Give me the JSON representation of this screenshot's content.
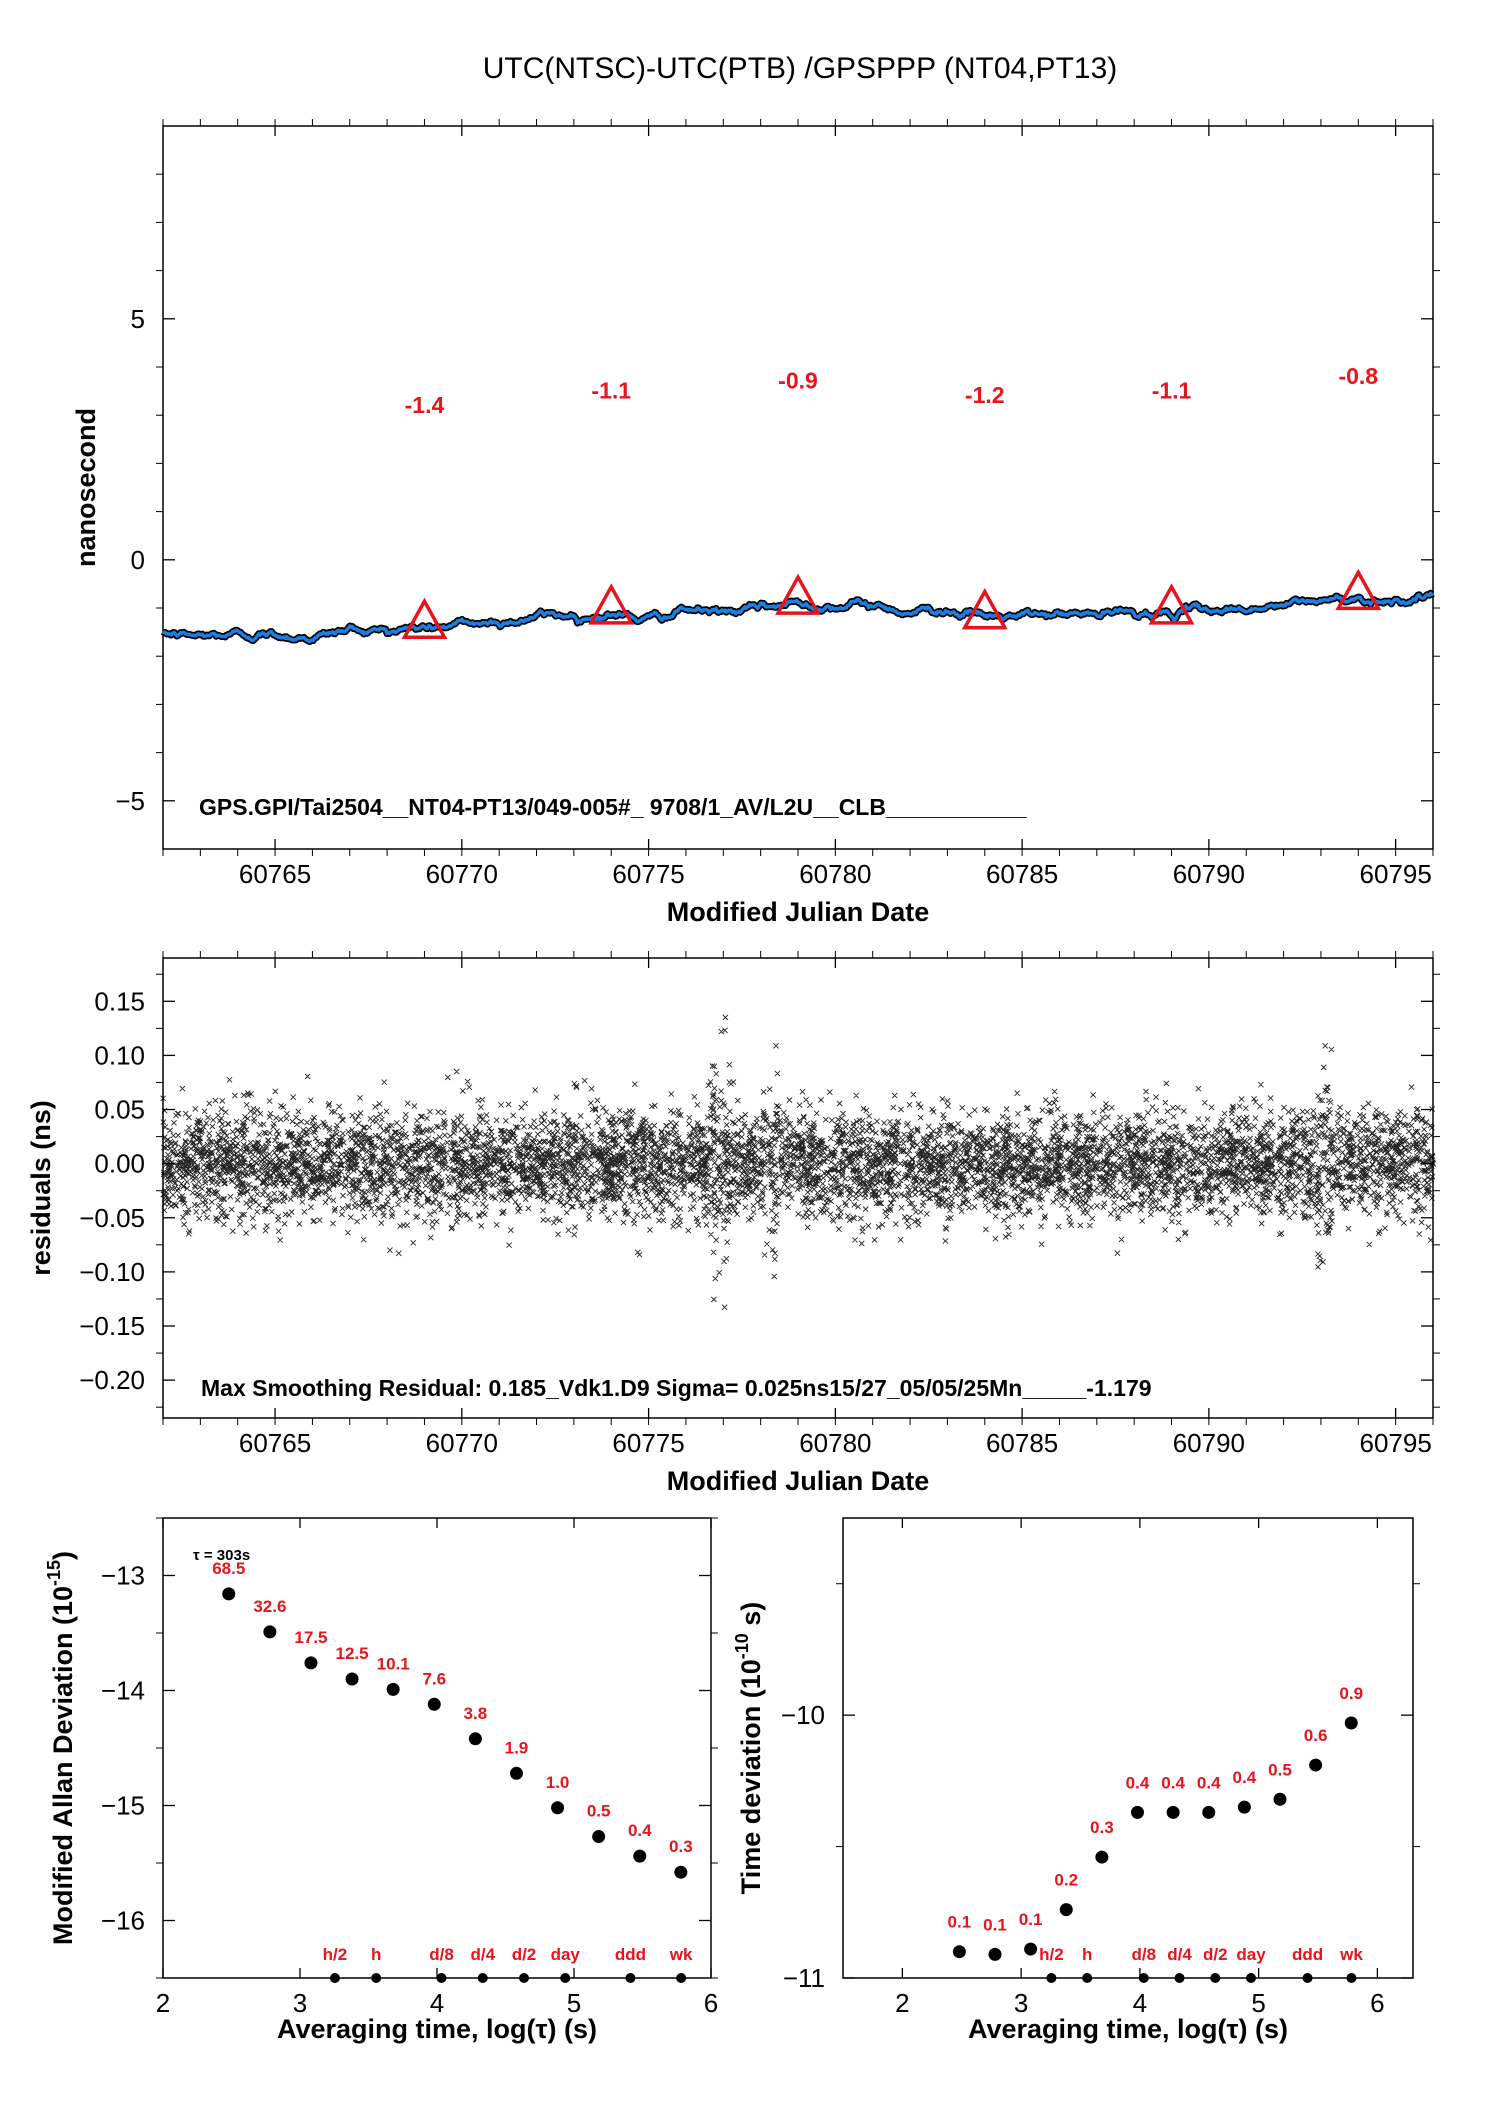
{
  "title": "UTC(NTSC)-UTC(PTB)  /GPSPPP  (NT04,PT13)",
  "colors": {
    "series_black": "#000000",
    "series_blue": "#1a7fe0",
    "marker_red": "#e8141c"
  },
  "chart_data": [
    {
      "name": "time-difference-panel",
      "type": "line",
      "ylabel": "nanosecond",
      "xlabel": "Modified Julian Date",
      "xlim": [
        60762,
        60796
      ],
      "ylim": [
        -6,
        9
      ],
      "xticks": [
        60765,
        60770,
        60775,
        60780,
        60785,
        60790,
        60795
      ],
      "yticks": [
        -5,
        0,
        5
      ],
      "tick_labels_x": [
        "60765",
        "60770",
        "60775",
        "60780",
        "60785",
        "60790",
        "60795"
      ],
      "tick_labels_y": [
        "−5",
        "0",
        "5"
      ],
      "series_points": [
        [
          60762,
          -1.55
        ],
        [
          60763,
          -1.6
        ],
        [
          60764,
          -1.55
        ],
        [
          60765,
          -1.55
        ],
        [
          60766,
          -1.58
        ],
        [
          60767,
          -1.45
        ],
        [
          60768,
          -1.45
        ],
        [
          60769,
          -1.4
        ],
        [
          60770,
          -1.35
        ],
        [
          60771,
          -1.3
        ],
        [
          60772,
          -1.15
        ],
        [
          60773,
          -1.15
        ],
        [
          60774,
          -1.1
        ],
        [
          60775,
          -1.25
        ],
        [
          60776,
          -1.05
        ],
        [
          60777,
          -1.1
        ],
        [
          60778,
          -1.05
        ],
        [
          60779,
          -0.9
        ],
        [
          60780,
          -0.9
        ],
        [
          60781,
          -0.95
        ],
        [
          60782,
          -1.05
        ],
        [
          60783,
          -1.0
        ],
        [
          60783.6,
          -1.1
        ],
        [
          60784,
          -1.2
        ],
        [
          60785,
          -1.2
        ],
        [
          60786,
          -1.15
        ],
        [
          60787,
          -1.15
        ],
        [
          60788,
          -1.1
        ],
        [
          60789,
          -1.1
        ],
        [
          60790,
          -1.05
        ],
        [
          60791,
          -1.0
        ],
        [
          60792,
          -0.95
        ],
        [
          60793,
          -0.85
        ],
        [
          60794,
          -0.8
        ],
        [
          60795,
          -0.8
        ],
        [
          60796,
          -0.75
        ]
      ],
      "markers": [
        {
          "x": 60769,
          "y": -1.4,
          "label": "-1.4"
        },
        {
          "x": 60774,
          "y": -1.1,
          "label": "-1.1"
        },
        {
          "x": 60779,
          "y": -0.9,
          "label": "-0.9"
        },
        {
          "x": 60784,
          "y": -1.2,
          "label": "-1.2"
        },
        {
          "x": 60789,
          "y": -1.1,
          "label": "-1.1"
        },
        {
          "x": 60794,
          "y": -0.8,
          "label": "-0.8"
        }
      ],
      "annotation": "GPS.GPI/Tai2504__NT04-PT13/049-005#_  9708/1_AV/L2U__CLB___________"
    },
    {
      "name": "residuals-panel",
      "type": "scatter",
      "ylabel": "residuals (ns)",
      "xlabel": "Modified Julian Date",
      "xlim": [
        60762,
        60796
      ],
      "ylim": [
        -0.235,
        0.19
      ],
      "xticks": [
        60765,
        60770,
        60775,
        60780,
        60785,
        60790,
        60795
      ],
      "yticks": [
        -0.2,
        -0.15,
        -0.1,
        -0.05,
        0.0,
        0.05,
        0.1,
        0.15
      ],
      "tick_labels_x": [
        "60765",
        "60770",
        "60775",
        "60780",
        "60785",
        "60790",
        "60795"
      ],
      "tick_labels_y": [
        "−0.20",
        "−0.15",
        "−0.10",
        "−0.05",
        "0.00",
        "0.05",
        "0.10",
        "0.15"
      ],
      "sigma": 0.025,
      "max_residual": 0.185,
      "annotation": "Max Smoothing Residual: 0.185_Vdk1.D9  Sigma= 0.025ns15/27_05/05/25Mn_____-1.179"
    },
    {
      "name": "mdev-panel",
      "type": "scatter",
      "ylabel": "Modified Allan Deviation (10",
      "ylabel_sup": "-15",
      "ylabel_tail": ")",
      "xlabel": "Averaging time, log(τ) (s)",
      "xlim": [
        2,
        6
      ],
      "ylim": [
        -16.5,
        -12.5
      ],
      "xticks": [
        2,
        3,
        4,
        5,
        6
      ],
      "yticks": [
        -16,
        -15,
        -14,
        -13
      ],
      "tick_labels_x": [
        "2",
        "3",
        "4",
        "5",
        "6"
      ],
      "tick_labels_y": [
        "−16",
        "−15",
        "−14",
        "−13"
      ],
      "tau_note": "τ = 303s",
      "points": [
        {
          "x": 2.48,
          "y": -13.16,
          "label": "68.5"
        },
        {
          "x": 2.78,
          "y": -13.49,
          "label": "32.6"
        },
        {
          "x": 3.08,
          "y": -13.76,
          "label": "17.5"
        },
        {
          "x": 3.38,
          "y": -13.9,
          "label": "12.5"
        },
        {
          "x": 3.68,
          "y": -13.99,
          "label": "10.1"
        },
        {
          "x": 3.98,
          "y": -14.12,
          "label": "7.6"
        },
        {
          "x": 4.28,
          "y": -14.42,
          "label": "3.8"
        },
        {
          "x": 4.58,
          "y": -14.72,
          "label": "1.9"
        },
        {
          "x": 4.88,
          "y": -15.02,
          "label": "1.0"
        },
        {
          "x": 5.18,
          "y": -15.27,
          "label": "0.5"
        },
        {
          "x": 5.48,
          "y": -15.44,
          "label": "0.4"
        },
        {
          "x": 5.78,
          "y": -15.58,
          "label": "0.3"
        }
      ],
      "markers": [
        {
          "x": 3.255,
          "label": "h/2"
        },
        {
          "x": 3.556,
          "label": "h"
        },
        {
          "x": 4.033,
          "label": "d/8"
        },
        {
          "x": 4.334,
          "label": "d/4"
        },
        {
          "x": 4.635,
          "label": "d/2"
        },
        {
          "x": 4.936,
          "label": "day"
        },
        {
          "x": 5.412,
          "label": "ddd"
        },
        {
          "x": 5.782,
          "label": "wk"
        }
      ]
    },
    {
      "name": "tdev-panel",
      "type": "scatter",
      "ylabel": "Time deviation (10",
      "ylabel_sup": "-10",
      "ylabel_tail": " s)",
      "xlabel": "Averaging time, log(τ) (s)",
      "xlim": [
        1.5,
        6.3
      ],
      "ylim": [
        -11,
        -9.25
      ],
      "xticks": [
        2,
        3,
        4,
        5,
        6
      ],
      "yticks": [
        -11,
        -10
      ],
      "tick_labels_x": [
        "2",
        "3",
        "4",
        "5",
        "6"
      ],
      "tick_labels_y": [
        "−11",
        "−10"
      ],
      "points": [
        {
          "x": 2.48,
          "y": -10.9,
          "label": "0.1"
        },
        {
          "x": 2.78,
          "y": -10.91,
          "label": "0.1"
        },
        {
          "x": 3.08,
          "y": -10.89,
          "label": "0.1"
        },
        {
          "x": 3.38,
          "y": -10.74,
          "label": "0.2"
        },
        {
          "x": 3.68,
          "y": -10.54,
          "label": "0.3"
        },
        {
          "x": 3.98,
          "y": -10.37,
          "label": "0.4"
        },
        {
          "x": 4.28,
          "y": -10.37,
          "label": "0.4"
        },
        {
          "x": 4.58,
          "y": -10.37,
          "label": "0.4"
        },
        {
          "x": 4.88,
          "y": -10.35,
          "label": "0.4"
        },
        {
          "x": 5.18,
          "y": -10.32,
          "label": "0.5"
        },
        {
          "x": 5.48,
          "y": -10.19,
          "label": "0.6"
        },
        {
          "x": 5.78,
          "y": -10.03,
          "label": "0.9"
        }
      ],
      "markers": [
        {
          "x": 3.255,
          "label": "h/2"
        },
        {
          "x": 3.556,
          "label": "h"
        },
        {
          "x": 4.033,
          "label": "d/8"
        },
        {
          "x": 4.334,
          "label": "d/4"
        },
        {
          "x": 4.635,
          "label": "d/2"
        },
        {
          "x": 4.936,
          "label": "day"
        },
        {
          "x": 5.412,
          "label": "ddd"
        },
        {
          "x": 5.782,
          "label": "wk"
        }
      ]
    }
  ]
}
